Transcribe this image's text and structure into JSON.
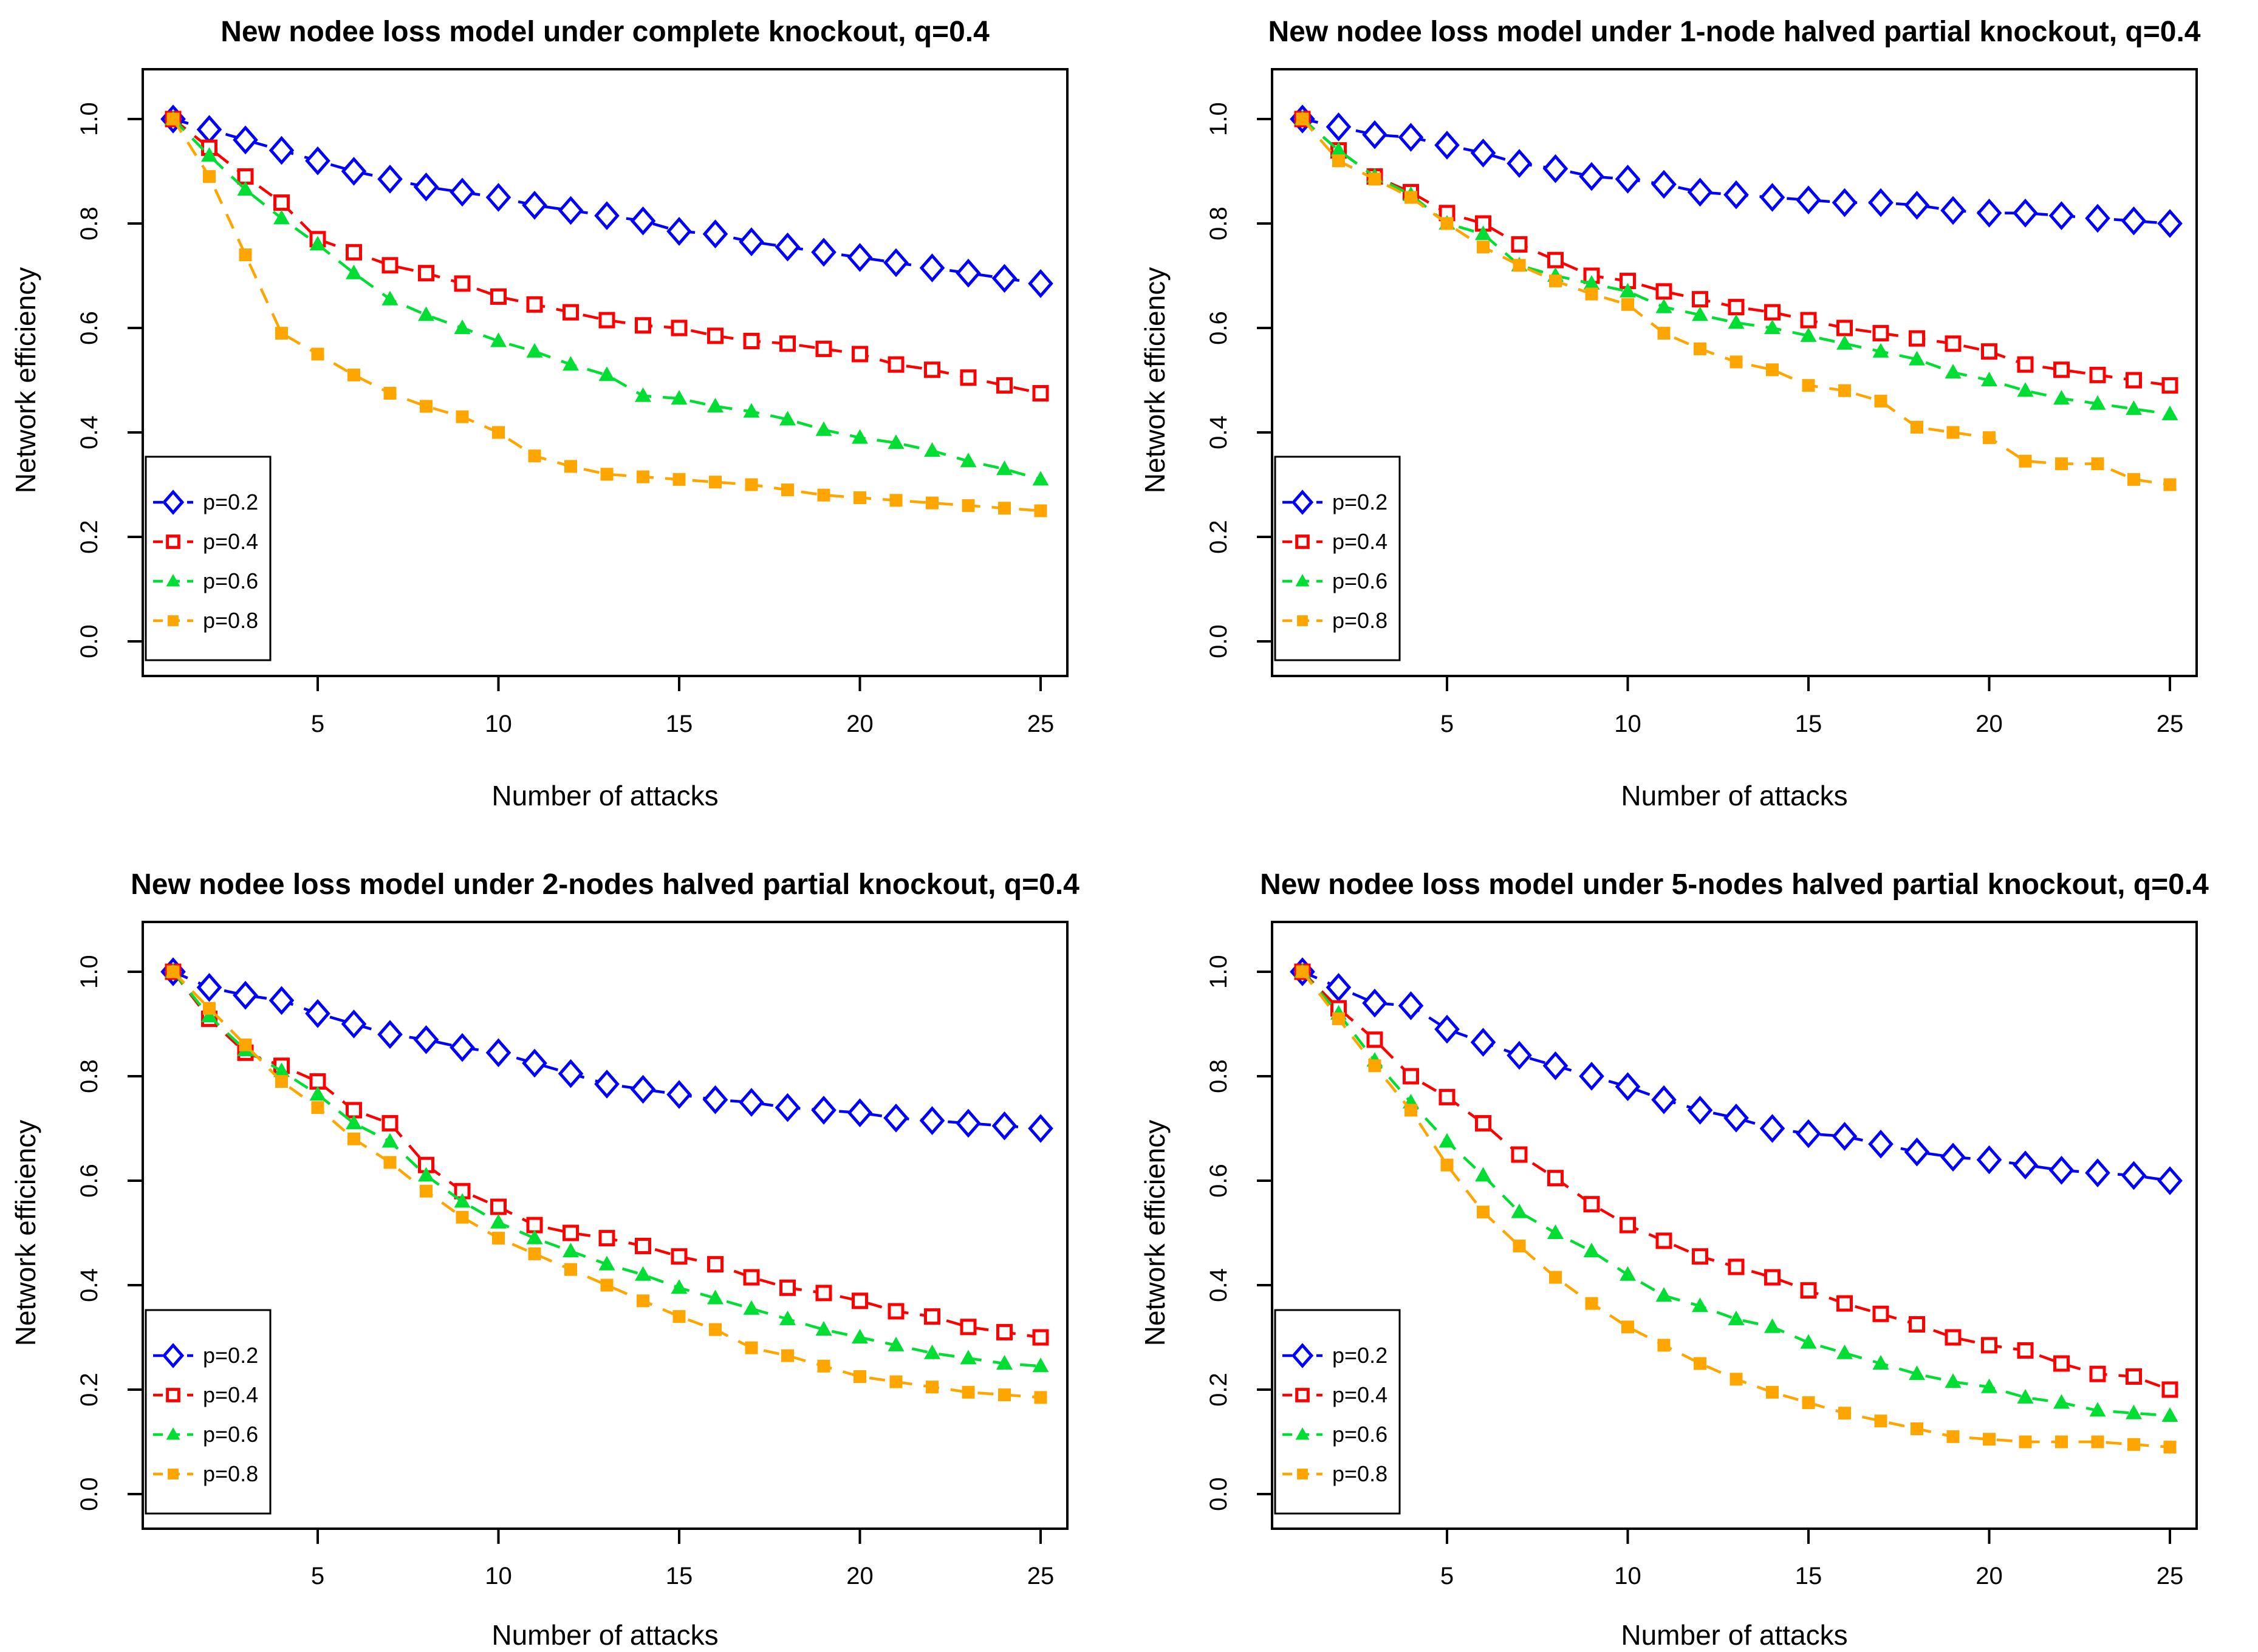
{
  "figure": {
    "background": "#ffffff",
    "n_panels": 4,
    "layout": "2x2"
  },
  "chart_data": [
    {
      "type": "line",
      "panel": "top-left",
      "title": "New nodee loss model under complete knockout, q=0.4",
      "xlabel": "Number of attacks",
      "ylabel": "Network efficiency",
      "xlim": [
        1,
        25
      ],
      "ylim": [
        0.0,
        1.0
      ],
      "x_ticks": [
        5,
        10,
        15,
        20,
        25
      ],
      "y_ticks": [
        "0.0",
        "0.2",
        "0.4",
        "0.6",
        "0.8",
        "1.0"
      ],
      "grid": false,
      "legend_position": "bottom-left",
      "x": [
        1,
        2,
        3,
        4,
        5,
        6,
        7,
        8,
        9,
        10,
        11,
        12,
        13,
        14,
        15,
        16,
        17,
        18,
        19,
        20,
        21,
        22,
        23,
        24,
        25
      ],
      "series": [
        {
          "name": "p=0.2",
          "color": "#0000FF",
          "marker": "open-diamond",
          "values": [
            1.0,
            0.98,
            0.96,
            0.94,
            0.92,
            0.9,
            0.885,
            0.87,
            0.86,
            0.85,
            0.835,
            0.825,
            0.815,
            0.805,
            0.785,
            0.78,
            0.765,
            0.755,
            0.745,
            0.735,
            0.725,
            0.715,
            0.705,
            0.695,
            0.685
          ]
        },
        {
          "name": "p=0.4",
          "color": "#FF0000",
          "marker": "open-square",
          "values": [
            1.0,
            0.945,
            0.89,
            0.84,
            0.77,
            0.745,
            0.72,
            0.705,
            0.685,
            0.66,
            0.645,
            0.63,
            0.615,
            0.605,
            0.6,
            0.585,
            0.575,
            0.57,
            0.56,
            0.55,
            0.53,
            0.52,
            0.505,
            0.49,
            0.475
          ]
        },
        {
          "name": "p=0.6",
          "color": "#00DD33",
          "marker": "filled-triangle",
          "values": [
            1.0,
            0.93,
            0.865,
            0.81,
            0.76,
            0.705,
            0.655,
            0.625,
            0.6,
            0.575,
            0.555,
            0.53,
            0.51,
            0.47,
            0.465,
            0.45,
            0.44,
            0.425,
            0.405,
            0.39,
            0.38,
            0.365,
            0.345,
            0.33,
            0.31
          ]
        },
        {
          "name": "p=0.8",
          "color": "#FFA500",
          "marker": "filled-square",
          "values": [
            1.0,
            0.89,
            0.74,
            0.59,
            0.55,
            0.51,
            0.475,
            0.45,
            0.43,
            0.4,
            0.355,
            0.335,
            0.32,
            0.315,
            0.31,
            0.305,
            0.3,
            0.29,
            0.28,
            0.275,
            0.27,
            0.265,
            0.26,
            0.255,
            0.25
          ]
        }
      ]
    },
    {
      "type": "line",
      "panel": "top-right",
      "title": "New nodee loss model under 1-node halved partial knockout, q=0.4",
      "xlabel": "Number of attacks",
      "ylabel": "Network efficiency",
      "xlim": [
        1,
        25
      ],
      "ylim": [
        0.0,
        1.0
      ],
      "x_ticks": [
        5,
        10,
        15,
        20,
        25
      ],
      "y_ticks": [
        "0.0",
        "0.2",
        "0.4",
        "0.6",
        "0.8",
        "1.0"
      ],
      "grid": false,
      "legend_position": "bottom-left",
      "x": [
        1,
        2,
        3,
        4,
        5,
        6,
        7,
        8,
        9,
        10,
        11,
        12,
        13,
        14,
        15,
        16,
        17,
        18,
        19,
        20,
        21,
        22,
        23,
        24,
        25
      ],
      "series": [
        {
          "name": "p=0.2",
          "color": "#0000FF",
          "marker": "open-diamond",
          "values": [
            1.0,
            0.985,
            0.97,
            0.965,
            0.95,
            0.935,
            0.915,
            0.905,
            0.89,
            0.885,
            0.875,
            0.86,
            0.855,
            0.85,
            0.845,
            0.84,
            0.84,
            0.835,
            0.825,
            0.82,
            0.82,
            0.815,
            0.81,
            0.805,
            0.8
          ]
        },
        {
          "name": "p=0.4",
          "color": "#FF0000",
          "marker": "open-square",
          "values": [
            1.0,
            0.94,
            0.89,
            0.86,
            0.82,
            0.8,
            0.76,
            0.73,
            0.7,
            0.69,
            0.67,
            0.655,
            0.64,
            0.63,
            0.615,
            0.6,
            0.59,
            0.58,
            0.57,
            0.555,
            0.53,
            0.52,
            0.51,
            0.5,
            0.49
          ]
        },
        {
          "name": "p=0.6",
          "color": "#00DD33",
          "marker": "filled-triangle",
          "values": [
            1.0,
            0.94,
            0.89,
            0.855,
            0.8,
            0.78,
            0.72,
            0.7,
            0.685,
            0.67,
            0.64,
            0.625,
            0.61,
            0.6,
            0.585,
            0.57,
            0.555,
            0.54,
            0.515,
            0.5,
            0.48,
            0.465,
            0.455,
            0.445,
            0.435
          ]
        },
        {
          "name": "p=0.8",
          "color": "#FFA500",
          "marker": "filled-square",
          "values": [
            1.0,
            0.92,
            0.885,
            0.85,
            0.8,
            0.755,
            0.72,
            0.69,
            0.665,
            0.645,
            0.59,
            0.56,
            0.535,
            0.52,
            0.49,
            0.48,
            0.46,
            0.41,
            0.4,
            0.39,
            0.345,
            0.34,
            0.34,
            0.31,
            0.3
          ]
        }
      ]
    },
    {
      "type": "line",
      "panel": "bottom-left",
      "title": "New nodee loss model under 2-nodes halved partial knockout, q=0.4",
      "xlabel": "Number of attacks",
      "ylabel": "Network efficiency",
      "xlim": [
        1,
        25
      ],
      "ylim": [
        0.0,
        1.0
      ],
      "x_ticks": [
        5,
        10,
        15,
        20,
        25
      ],
      "y_ticks": [
        "0.0",
        "0.2",
        "0.4",
        "0.6",
        "0.8",
        "1.0"
      ],
      "grid": false,
      "legend_position": "bottom-left",
      "x": [
        1,
        2,
        3,
        4,
        5,
        6,
        7,
        8,
        9,
        10,
        11,
        12,
        13,
        14,
        15,
        16,
        17,
        18,
        19,
        20,
        21,
        22,
        23,
        24,
        25
      ],
      "series": [
        {
          "name": "p=0.2",
          "color": "#0000FF",
          "marker": "open-diamond",
          "values": [
            1.0,
            0.97,
            0.955,
            0.945,
            0.92,
            0.9,
            0.88,
            0.87,
            0.855,
            0.845,
            0.825,
            0.805,
            0.785,
            0.775,
            0.765,
            0.755,
            0.75,
            0.74,
            0.735,
            0.73,
            0.72,
            0.715,
            0.71,
            0.705,
            0.7
          ]
        },
        {
          "name": "p=0.4",
          "color": "#FF0000",
          "marker": "open-square",
          "values": [
            1.0,
            0.91,
            0.845,
            0.82,
            0.79,
            0.735,
            0.71,
            0.63,
            0.58,
            0.55,
            0.515,
            0.5,
            0.49,
            0.475,
            0.455,
            0.44,
            0.415,
            0.395,
            0.385,
            0.37,
            0.35,
            0.34,
            0.32,
            0.31,
            0.3
          ]
        },
        {
          "name": "p=0.6",
          "color": "#00DD33",
          "marker": "filled-triangle",
          "values": [
            1.0,
            0.915,
            0.85,
            0.81,
            0.765,
            0.71,
            0.675,
            0.61,
            0.56,
            0.52,
            0.49,
            0.465,
            0.44,
            0.42,
            0.395,
            0.375,
            0.355,
            0.335,
            0.315,
            0.3,
            0.285,
            0.27,
            0.26,
            0.25,
            0.245
          ]
        },
        {
          "name": "p=0.8",
          "color": "#FFA500",
          "marker": "filled-square",
          "values": [
            1.0,
            0.93,
            0.86,
            0.79,
            0.74,
            0.68,
            0.635,
            0.58,
            0.53,
            0.49,
            0.46,
            0.43,
            0.4,
            0.37,
            0.34,
            0.315,
            0.28,
            0.265,
            0.245,
            0.225,
            0.215,
            0.205,
            0.195,
            0.19,
            0.185
          ]
        }
      ]
    },
    {
      "type": "line",
      "panel": "bottom-right",
      "title": "New nodee loss model under 5-nodes halved partial knockout, q=0.4",
      "xlabel": "Number of attacks",
      "ylabel": "Network efficiency",
      "xlim": [
        1,
        25
      ],
      "ylim": [
        0.0,
        1.0
      ],
      "x_ticks": [
        5,
        10,
        15,
        20,
        25
      ],
      "y_ticks": [
        "0.0",
        "0.2",
        "0.4",
        "0.6",
        "0.8",
        "1.0"
      ],
      "grid": false,
      "legend_position": "bottom-left",
      "x": [
        1,
        2,
        3,
        4,
        5,
        6,
        7,
        8,
        9,
        10,
        11,
        12,
        13,
        14,
        15,
        16,
        17,
        18,
        19,
        20,
        21,
        22,
        23,
        24,
        25
      ],
      "series": [
        {
          "name": "p=0.2",
          "color": "#0000FF",
          "marker": "open-diamond",
          "values": [
            1.0,
            0.97,
            0.94,
            0.935,
            0.89,
            0.865,
            0.84,
            0.82,
            0.8,
            0.78,
            0.755,
            0.735,
            0.72,
            0.7,
            0.69,
            0.685,
            0.67,
            0.655,
            0.645,
            0.64,
            0.63,
            0.62,
            0.615,
            0.61,
            0.6
          ]
        },
        {
          "name": "p=0.4",
          "color": "#FF0000",
          "marker": "open-square",
          "values": [
            1.0,
            0.93,
            0.87,
            0.8,
            0.76,
            0.71,
            0.65,
            0.605,
            0.555,
            0.515,
            0.485,
            0.455,
            0.435,
            0.415,
            0.39,
            0.365,
            0.345,
            0.325,
            0.3,
            0.285,
            0.275,
            0.25,
            0.23,
            0.225,
            0.2
          ]
        },
        {
          "name": "p=0.6",
          "color": "#00DD33",
          "marker": "filled-triangle",
          "values": [
            1.0,
            0.92,
            0.83,
            0.75,
            0.675,
            0.61,
            0.54,
            0.5,
            0.465,
            0.42,
            0.38,
            0.36,
            0.335,
            0.32,
            0.29,
            0.27,
            0.25,
            0.23,
            0.215,
            0.205,
            0.185,
            0.175,
            0.16,
            0.155,
            0.15
          ]
        },
        {
          "name": "p=0.8",
          "color": "#FFA500",
          "marker": "filled-square",
          "values": [
            1.0,
            0.91,
            0.82,
            0.735,
            0.63,
            0.54,
            0.475,
            0.415,
            0.365,
            0.32,
            0.285,
            0.25,
            0.22,
            0.195,
            0.175,
            0.155,
            0.14,
            0.125,
            0.11,
            0.105,
            0.1,
            0.1,
            0.1,
            0.095,
            0.09
          ]
        }
      ]
    }
  ]
}
